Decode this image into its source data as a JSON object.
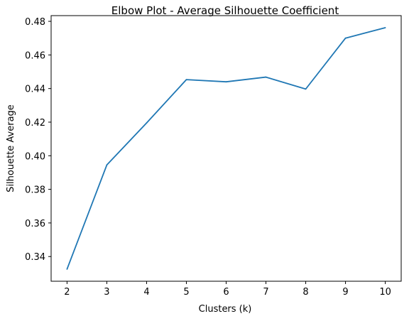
{
  "chart_data": {
    "type": "line",
    "title": "Elbow Plot - Average Silhouette Coefficient",
    "xlabel": "Clusters (k)",
    "ylabel": "Silhouette Average",
    "x": [
      2,
      3,
      4,
      5,
      6,
      7,
      8,
      9,
      10
    ],
    "series": [
      {
        "values": [
          0.3325,
          0.3945,
          0.4195,
          0.4453,
          0.444,
          0.4468,
          0.4397,
          0.47,
          0.4762
        ]
      }
    ],
    "xticks": [
      2,
      3,
      4,
      5,
      6,
      7,
      8,
      9,
      10
    ],
    "yticks": [
      0.34,
      0.36,
      0.38,
      0.4,
      0.42,
      0.44,
      0.46,
      0.48
    ],
    "ytick_labels": [
      "0.34",
      "0.36",
      "0.38",
      "0.40",
      "0.42",
      "0.44",
      "0.46",
      "0.48"
    ],
    "xlim": [
      1.6,
      10.4
    ],
    "ylim": [
      0.3253,
      0.4834
    ],
    "grid": false,
    "line_color": "#1f77b4"
  }
}
